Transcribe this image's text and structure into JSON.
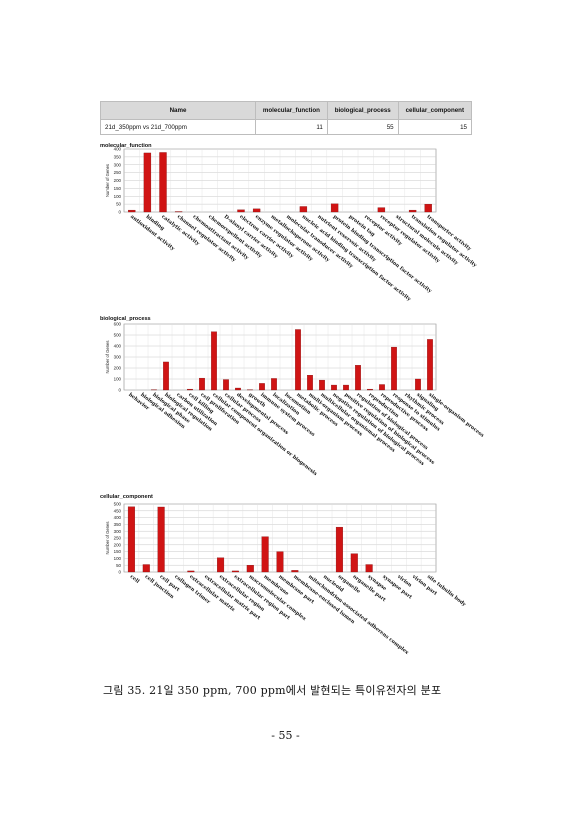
{
  "summary_table": {
    "headers": [
      "Name",
      "molecular_function",
      "biological_process",
      "cellular_component"
    ],
    "row": [
      "21d_350ppm vs 21d_700ppm",
      "11",
      "55",
      "15"
    ]
  },
  "chart_data": [
    {
      "type": "bar",
      "title": "molecular_function",
      "ylabel": "Number of Genes",
      "ylim": [
        0,
        400
      ],
      "yticks": [
        0,
        50,
        100,
        150,
        200,
        250,
        300,
        350,
        400
      ],
      "grid": true,
      "colors": {
        "bar": "#d01414"
      },
      "categories": [
        "antioxidant activity",
        "binding",
        "catalytic activity",
        "channel regulator activity",
        "chemoattractant activity",
        "chemorepellent activity",
        "D-alanyl carrier activity",
        "electron carrier activity",
        "enzyme regulator activity",
        "metallochaperone activity",
        "molecular transducer activity",
        "nucleic acid binding transcription factor activity",
        "nutrient reservoir activity",
        "protein binding transcription factor activity",
        "protein tag",
        "receptor activity",
        "receptor regulator activity",
        "structural molecule activity",
        "translation regulator activity",
        "transporter activity"
      ],
      "values": [
        12,
        375,
        378,
        3,
        0,
        0,
        0,
        14,
        20,
        0,
        0,
        35,
        0,
        52,
        0,
        0,
        28,
        0,
        12,
        50
      ]
    },
    {
      "type": "bar",
      "title": "biological_process",
      "ylabel": "Number of Genes",
      "ylim": [
        0,
        600
      ],
      "yticks": [
        0,
        100,
        200,
        300,
        400,
        500,
        600
      ],
      "grid": true,
      "colors": {
        "bar": "#d01414"
      },
      "categories": [
        "behavior",
        "biological adhesion",
        "biological phase",
        "biological regulation",
        "carbon utilization",
        "cell killing",
        "cell proliferation",
        "cellular component organization or biogenesis",
        "cellular process",
        "developmental process",
        "growth",
        "immune system process",
        "localization",
        "locomotion",
        "metabolic process",
        "multi-organism process",
        "multicellular organismal process",
        "negative regulation of biological process",
        "positive regulation of biological process",
        "regulation of biological process",
        "reproduction",
        "reproductive process",
        "response to stimulus",
        "rhythmic process",
        "signaling",
        "single-organism process"
      ],
      "values": [
        0,
        0,
        3,
        255,
        0,
        8,
        108,
        530,
        95,
        18,
        3,
        60,
        105,
        0,
        550,
        135,
        90,
        45,
        45,
        225,
        8,
        50,
        390,
        0,
        100,
        460
      ]
    },
    {
      "type": "bar",
      "title": "cellular_component",
      "ylabel": "Number of Genes",
      "ylim": [
        0,
        500
      ],
      "yticks": [
        0,
        50,
        100,
        150,
        200,
        250,
        300,
        350,
        400,
        450,
        500
      ],
      "grid": true,
      "colors": {
        "bar": "#d01414"
      },
      "categories": [
        "cell",
        "cell junction",
        "cell part",
        "collagen trimer",
        "extracellular matrix",
        "extracellular matrix part",
        "extracellular region",
        "extracellular region part",
        "macromolecular complex",
        "membrane",
        "membrane part",
        "membrane-enclosed lumen",
        "mitochondrion-associated adherens complex",
        "nucleoid",
        "organelle",
        "organelle part",
        "synapse",
        "synapse part",
        "virion",
        "virion part",
        "site tubulin body"
      ],
      "values": [
        480,
        55,
        478,
        0,
        8,
        0,
        105,
        8,
        50,
        260,
        150,
        12,
        0,
        0,
        330,
        135,
        55,
        0,
        0,
        0,
        0
      ]
    }
  ],
  "caption": "그림 35. 21일 350 ppm, 700 ppm에서 발현되는 특이유전자의 분포",
  "page_number": "- 55 -"
}
